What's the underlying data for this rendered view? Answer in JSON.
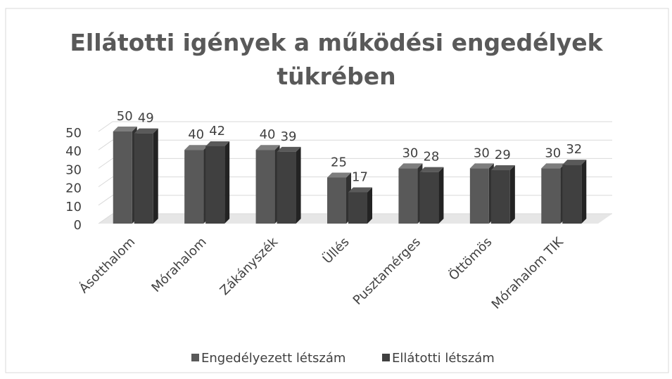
{
  "chart_data": {
    "type": "bar3d",
    "title": "Ellátotti igények a működési engedélyek tükrében",
    "categories": [
      "Ásotthalom",
      "Mórahalom",
      "Zákányszék",
      "Üllés",
      "Pusztamérges",
      "Öttömös",
      "Mórahalom TIK"
    ],
    "series": [
      {
        "name": "Engedélyezett létszám",
        "color": "#595959",
        "values": [
          50,
          40,
          40,
          25,
          30,
          30,
          30
        ]
      },
      {
        "name": "Ellátotti létszám",
        "color": "#404040",
        "values": [
          49,
          42,
          39,
          17,
          28,
          29,
          32
        ]
      }
    ],
    "ylim": [
      0,
      50
    ],
    "yticks": [
      0,
      10,
      20,
      30,
      40,
      50
    ],
    "grid": true,
    "legend": "bottom"
  }
}
